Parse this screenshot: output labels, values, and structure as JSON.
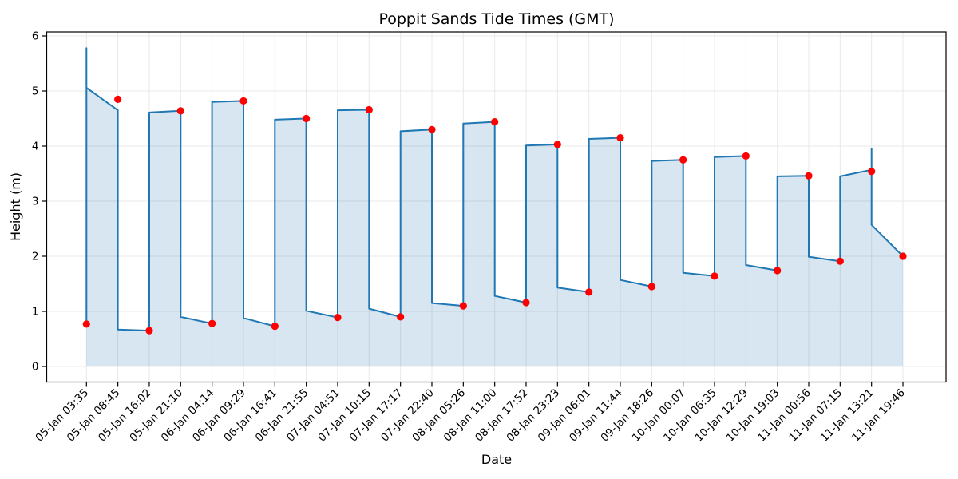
{
  "title": "Poppit Sands Tide Times (GMT)",
  "chart_data": {
    "type": "line",
    "title": "Poppit Sands Tide Times (GMT)",
    "xlabel": "Date",
    "ylabel": "Height (m)",
    "yticks": [
      0,
      1,
      2,
      3,
      4,
      5,
      6
    ],
    "ylim": [
      -0.29,
      6.09
    ],
    "grid": true,
    "legend": false,
    "colors": {
      "line": "#1f77b4",
      "area_fill": "rgba(31,119,180,0.18)",
      "marker": "#ff0000",
      "grid": "#e8e8e8",
      "spine": "#000000"
    },
    "categories": [
      "05-Jan 03:35",
      "05-Jan 08:45",
      "05-Jan 16:02",
      "05-Jan 21:10",
      "06-Jan 04:14",
      "06-Jan 09:29",
      "06-Jan 16:41",
      "06-Jan 21:55",
      "07-Jan 04:51",
      "07-Jan 10:15",
      "07-Jan 17:17",
      "07-Jan 22:40",
      "08-Jan 05:26",
      "08-Jan 11:00",
      "08-Jan 17:52",
      "08-Jan 23:23",
      "09-Jan 06:01",
      "09-Jan 11:44",
      "09-Jan 18:26",
      "10-Jan 00:07",
      "10-Jan 06:35",
      "10-Jan 12:29",
      "10-Jan 19:03",
      "11-Jan 00:56",
      "11-Jan 07:15",
      "11-Jan 13:21",
      "11-Jan 19:46"
    ],
    "series": [
      {
        "name": "tide-events-scatter",
        "type": "scatter",
        "color": "#ff0000",
        "values": [
          0.77,
          4.85,
          0.65,
          4.64,
          0.78,
          4.82,
          0.73,
          4.5,
          0.89,
          4.66,
          0.9,
          4.3,
          1.1,
          4.44,
          1.16,
          4.03,
          1.35,
          4.15,
          1.45,
          3.75,
          1.64,
          3.82,
          1.74,
          3.46,
          1.91,
          3.54,
          2.0
        ],
        "event_types": [
          "low",
          "high",
          "low",
          "high",
          "low",
          "high",
          "low",
          "high",
          "low",
          "high",
          "low",
          "high",
          "low",
          "high",
          "low",
          "high",
          "low",
          "high",
          "low",
          "high",
          "low",
          "high",
          "low",
          "high",
          "low",
          "high",
          "low"
        ]
      },
      {
        "name": "tide-curve-line-with-area",
        "type": "area",
        "color": "#1f77b4",
        "note": "polyline vertices as [category_index, height_m], traced from the plotted curve",
        "vertices": [
          [
            0,
            0.77
          ],
          [
            0,
            5.78
          ],
          [
            0,
            5.06
          ],
          [
            1,
            4.65
          ],
          [
            1,
            0.67
          ],
          [
            2,
            0.65
          ],
          [
            2,
            4.61
          ],
          [
            3,
            4.64
          ],
          [
            3,
            0.9
          ],
          [
            4,
            0.78
          ],
          [
            4,
            4.8
          ],
          [
            5,
            4.82
          ],
          [
            5,
            0.88
          ],
          [
            6,
            0.73
          ],
          [
            6,
            4.48
          ],
          [
            7,
            4.5
          ],
          [
            7,
            1.01
          ],
          [
            8,
            0.89
          ],
          [
            8,
            4.65
          ],
          [
            9,
            4.66
          ],
          [
            9,
            1.05
          ],
          [
            10,
            0.9
          ],
          [
            10,
            4.27
          ],
          [
            11,
            4.3
          ],
          [
            11,
            1.15
          ],
          [
            12,
            1.1
          ],
          [
            12,
            4.41
          ],
          [
            13,
            4.44
          ],
          [
            13,
            1.28
          ],
          [
            14,
            1.16
          ],
          [
            14,
            4.01
          ],
          [
            15,
            4.03
          ],
          [
            15,
            1.43
          ],
          [
            16,
            1.35
          ],
          [
            16,
            4.13
          ],
          [
            17,
            4.15
          ],
          [
            17,
            1.57
          ],
          [
            18,
            1.45
          ],
          [
            18,
            3.73
          ],
          [
            19,
            3.75
          ],
          [
            19,
            1.7
          ],
          [
            20,
            1.64
          ],
          [
            20,
            3.8
          ],
          [
            21,
            3.82
          ],
          [
            21,
            1.84
          ],
          [
            22,
            1.74
          ],
          [
            22,
            3.45
          ],
          [
            23,
            3.46
          ],
          [
            23,
            1.99
          ],
          [
            24,
            1.91
          ],
          [
            24,
            3.45
          ],
          [
            25,
            3.57
          ],
          [
            25,
            3.95
          ],
          [
            25,
            2.57
          ],
          [
            26,
            2.0
          ]
        ]
      }
    ]
  }
}
